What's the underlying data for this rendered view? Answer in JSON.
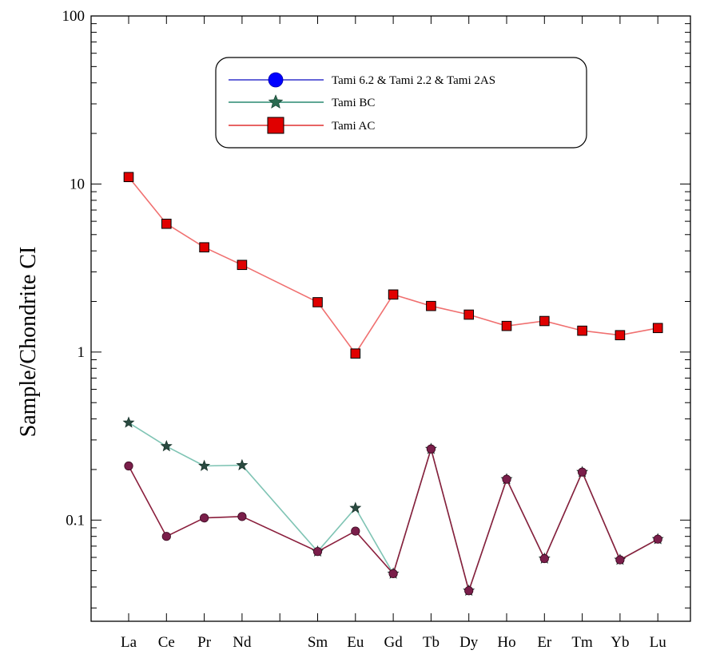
{
  "chart_data": {
    "type": "line",
    "yscale": "log",
    "ylim": [
      0.025,
      100
    ],
    "ylabel": "Sample/Chondrite CI",
    "xlabel": "",
    "y_tick_labels": [
      "100",
      "10",
      "1",
      "0.1"
    ],
    "categories": [
      "La",
      "Ce",
      "Pr",
      "Nd",
      "",
      "Sm",
      "Eu",
      "Gd",
      "Tb",
      "Dy",
      "Ho",
      "Er",
      "Tm",
      "Yb",
      "Lu"
    ],
    "grid": false,
    "legend": "top-center",
    "series": [
      {
        "name": "Tami 6.2 & Tami 2.2 & Tami 2AS",
        "marker": "circle",
        "color": "#3333cc",
        "marker_color": "#7a1e4a",
        "line_color": "#8a1e3c",
        "values": [
          0.21,
          0.08,
          0.103,
          0.105,
          null,
          0.065,
          0.086,
          0.048,
          0.265,
          0.038,
          0.175,
          0.059,
          0.193,
          0.058,
          0.077
        ]
      },
      {
        "name": "Tami BC",
        "marker": "star",
        "color": "#2a8a70",
        "marker_color": "#2a4a40",
        "line_color": "#7fc4b4",
        "values": [
          0.38,
          0.275,
          0.21,
          0.212,
          null,
          0.065,
          0.118,
          0.048,
          0.265,
          0.038,
          0.175,
          0.059,
          0.193,
          0.058,
          0.077
        ]
      },
      {
        "name": "Tami AC",
        "marker": "square",
        "color": "#e03030",
        "marker_color": "#e00000",
        "line_color": "#f07070",
        "values": [
          11,
          5.8,
          4.2,
          3.3,
          null,
          1.98,
          0.98,
          2.2,
          1.88,
          1.67,
          1.43,
          1.53,
          1.34,
          1.26,
          1.39
        ]
      }
    ]
  }
}
